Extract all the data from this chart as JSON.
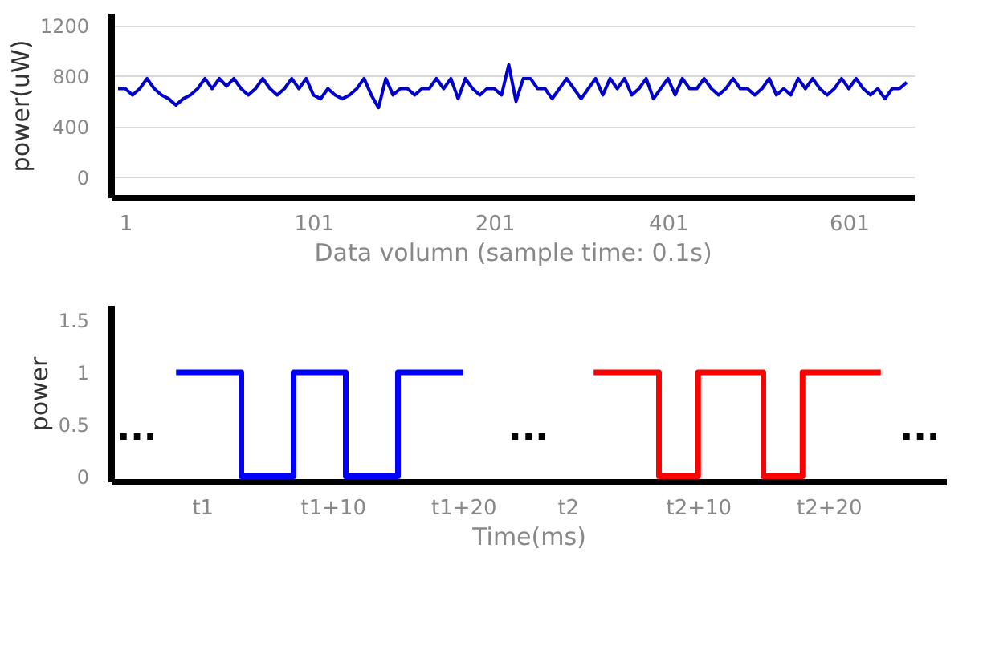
{
  "chart_data": [
    {
      "type": "line",
      "ylabel": "power(uW)",
      "xlabel": "Data volumn (sample time: 0.1s)",
      "grid": "y",
      "categories": [
        null,
        "1",
        null,
        null,
        null,
        null,
        null,
        null,
        null,
        null,
        null,
        null,
        null,
        null,
        null,
        null,
        null,
        null,
        null,
        null,
        null,
        null,
        null,
        null,
        null,
        null,
        null,
        "101",
        null,
        null,
        null,
        null,
        null,
        null,
        null,
        null,
        null,
        null,
        null,
        null,
        null,
        null,
        null,
        null,
        null,
        null,
        null,
        null,
        null,
        null,
        null,
        null,
        "201",
        null,
        null,
        null,
        null,
        null,
        null,
        null,
        null,
        null,
        null,
        null,
        null,
        null,
        null,
        null,
        null,
        null,
        null,
        null,
        null,
        null,
        null,
        null,
        "401",
        null,
        null,
        null,
        null,
        null,
        null,
        null,
        null,
        null,
        null,
        null,
        null,
        null,
        null,
        null,
        null,
        null,
        null,
        null,
        null,
        null,
        null,
        null,
        null,
        "601",
        null,
        null,
        null,
        null,
        null,
        null,
        null,
        null
      ],
      "ylim": [
        -160,
        1300
      ],
      "yticks": [
        0,
        400,
        800,
        1200
      ],
      "series": [
        {
          "color": "#0000cc",
          "values": [
            700,
            700,
            650,
            700,
            780,
            700,
            650,
            620,
            570,
            620,
            650,
            700,
            780,
            700,
            780,
            720,
            780,
            700,
            650,
            700,
            780,
            700,
            650,
            700,
            780,
            700,
            780,
            650,
            620,
            700,
            650,
            620,
            650,
            700,
            780,
            650,
            550,
            780,
            650,
            700,
            700,
            650,
            700,
            700,
            780,
            700,
            780,
            620,
            780,
            700,
            650,
            700,
            700,
            650,
            890,
            600,
            780,
            780,
            700,
            700,
            620,
            700,
            780,
            700,
            620,
            700,
            780,
            650,
            780,
            700,
            780,
            650,
            700,
            780,
            620,
            700,
            780,
            650,
            780,
            700,
            700,
            780,
            700,
            650,
            700,
            780,
            700,
            700,
            650,
            700,
            780,
            650,
            700,
            650,
            780,
            700,
            780,
            700,
            650,
            700,
            780,
            700,
            780,
            700,
            650,
            700,
            620,
            700,
            700,
            750
          ]
        }
      ]
    },
    {
      "type": "step",
      "ylabel": "power",
      "xlabel": "Time(ms)",
      "grid": false,
      "categories": [
        null,
        null,
        null,
        null,
        null,
        null,
        "t1",
        null,
        null,
        null,
        null,
        null,
        null,
        null,
        null,
        null,
        "t1+10",
        null,
        null,
        null,
        null,
        null,
        null,
        null,
        null,
        null,
        "t1+20",
        null,
        null,
        null,
        null,
        null,
        null,
        null,
        "t2",
        null,
        null,
        null,
        null,
        null,
        null,
        null,
        null,
        null,
        "t2+10",
        null,
        null,
        null,
        null,
        null,
        null,
        null,
        null,
        null,
        "t2+20",
        null,
        null,
        null,
        null,
        null,
        null,
        null,
        null
      ],
      "ylim": [
        -0.05,
        1.65
      ],
      "yticks": [
        0,
        0.5,
        1,
        1.5
      ],
      "series": [
        {
          "color": "#0000ff",
          "values": [
            null,
            null,
            null,
            null,
            1,
            1,
            1,
            1,
            1,
            0,
            0,
            0,
            0,
            1,
            1,
            1,
            1,
            0,
            0,
            0,
            0,
            1,
            1,
            1,
            1,
            1,
            1,
            null,
            null,
            null,
            null,
            null,
            null,
            null,
            null,
            null,
            null,
            null,
            null,
            null,
            null,
            null,
            null,
            null,
            null,
            null,
            null,
            null,
            null,
            null,
            null,
            null,
            null,
            null,
            null,
            null,
            null,
            null,
            null,
            null,
            null,
            null,
            null
          ]
        },
        {
          "color": "#ff0000",
          "values": [
            null,
            null,
            null,
            null,
            null,
            null,
            null,
            null,
            null,
            null,
            null,
            null,
            null,
            null,
            null,
            null,
            null,
            null,
            null,
            null,
            null,
            null,
            null,
            null,
            null,
            null,
            null,
            null,
            null,
            null,
            null,
            null,
            null,
            null,
            null,
            null,
            1,
            1,
            1,
            1,
            1,
            0,
            0,
            0,
            1,
            1,
            1,
            1,
            1,
            0,
            0,
            0,
            1,
            1,
            1,
            1,
            1,
            1,
            1,
            null,
            null,
            null,
            null
          ]
        }
      ],
      "annotations": [
        "...",
        "...",
        "..."
      ]
    }
  ]
}
